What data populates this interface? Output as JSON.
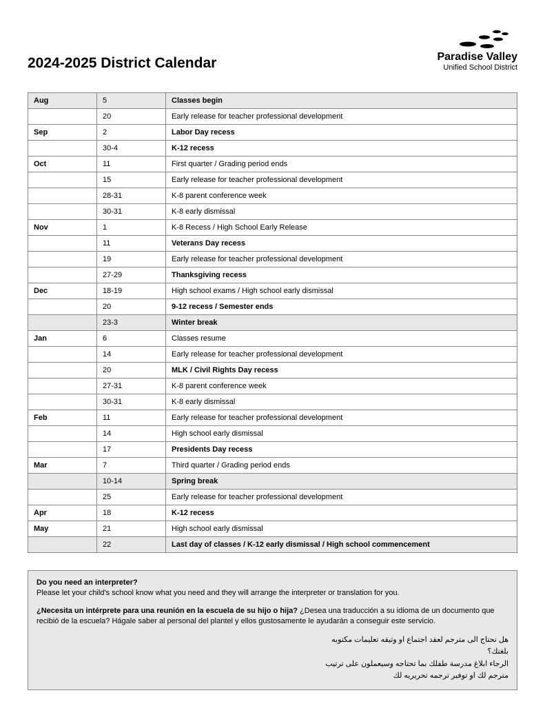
{
  "header": {
    "title": "2024-2025 District Calendar",
    "logo_name": "Paradise Valley",
    "logo_sub": "Unified School District"
  },
  "rows": [
    {
      "month": "Aug",
      "date": "5",
      "event": "Classes begin",
      "bold": true,
      "shaded": true
    },
    {
      "month": "",
      "date": "20",
      "event": "Early release for teacher professional development",
      "bold": false,
      "shaded": false
    },
    {
      "month": "Sep",
      "date": "2",
      "event": "Labor Day recess",
      "bold": true,
      "shaded": false
    },
    {
      "month": "",
      "date": "30-4",
      "event": "K-12 recess",
      "bold": true,
      "shaded": false
    },
    {
      "month": "Oct",
      "date": "11",
      "event": "First quarter / Grading period ends",
      "bold": false,
      "shaded": false
    },
    {
      "month": "",
      "date": "15",
      "event": "Early release for teacher professional development",
      "bold": false,
      "shaded": false
    },
    {
      "month": "",
      "date": "28-31",
      "event": "K-8 parent conference week",
      "bold": false,
      "shaded": false
    },
    {
      "month": "",
      "date": "30-31",
      "event": "K-8 early dismissal",
      "bold": false,
      "shaded": false
    },
    {
      "month": "Nov",
      "date": "1",
      "event": "K-8 Recess / High School Early Release",
      "bold": false,
      "shaded": false
    },
    {
      "month": "",
      "date": "11",
      "event": "Veterans Day recess",
      "bold": true,
      "shaded": false
    },
    {
      "month": "",
      "date": "19",
      "event": "Early release for teacher professional development",
      "bold": false,
      "shaded": false
    },
    {
      "month": "",
      "date": "27-29",
      "event": "Thanksgiving recess",
      "bold": true,
      "shaded": false
    },
    {
      "month": "Dec",
      "date": "18-19",
      "event": "High school exams / High school early dismissal",
      "bold": false,
      "shaded": false
    },
    {
      "month": "",
      "date": "20",
      "event": "9-12 recess / Semester ends",
      "bold": true,
      "shaded": false
    },
    {
      "month": "",
      "date": "23-3",
      "event": "Winter break",
      "bold": true,
      "shaded": true
    },
    {
      "month": "Jan",
      "date": "6",
      "event": "Classes resume",
      "bold": false,
      "shaded": false
    },
    {
      "month": "",
      "date": "14",
      "event": "Early release for teacher professional development",
      "bold": false,
      "shaded": false
    },
    {
      "month": "",
      "date": "20",
      "event": "MLK / Civil Rights Day recess",
      "bold": true,
      "shaded": false
    },
    {
      "month": "",
      "date": "27-31",
      "event": "K-8 parent conference week",
      "bold": false,
      "shaded": false
    },
    {
      "month": "",
      "date": "30-31",
      "event": "K-8 early dismissal",
      "bold": false,
      "shaded": false
    },
    {
      "month": "Feb",
      "date": "11",
      "event": "Early release for teacher professional development",
      "bold": false,
      "shaded": false
    },
    {
      "month": "",
      "date": "14",
      "event": "High school early dismissal",
      "bold": false,
      "shaded": false
    },
    {
      "month": "",
      "date": "17",
      "event": "Presidents Day recess",
      "bold": true,
      "shaded": false
    },
    {
      "month": "Mar",
      "date": "7",
      "event": "Third quarter / Grading period ends",
      "bold": false,
      "shaded": false
    },
    {
      "month": "",
      "date": "10-14",
      "event": "Spring break",
      "bold": true,
      "shaded": true
    },
    {
      "month": "",
      "date": "25",
      "event": "Early release for teacher professional development",
      "bold": false,
      "shaded": false
    },
    {
      "month": "Apr",
      "date": "18",
      "event": "K-12 recess",
      "bold": true,
      "shaded": false
    },
    {
      "month": "May",
      "date": "21",
      "event": "High school early dismissal",
      "bold": false,
      "shaded": false
    },
    {
      "month": "",
      "date": "22",
      "event": "Last day of classes / K-12 early dismissal / High school commencement",
      "bold": true,
      "shaded": true
    }
  ],
  "footer": {
    "en_q": "Do you need an interpreter?",
    "en_body": "Please let your child's school know what you need and they will arrange the interpreter or translation for you.",
    "es_q": "¿Necesita un intérprete para una reunión en la escuela de su hijo o hija?",
    "es_body": " ¿Desea una traducción a su idioma de un documento que recibió de la escuela? Hágale saber al personal del plantel y ellos gustosamente le ayudarán a conseguir este servicio.",
    "ar_1": "هل تحتاج الى مترجم لعقد اجتماع او وثيقه تعليمات مكتوبه",
    "ar_2": "بلغتك؟",
    "ar_3": "الرجاء ابلاغ مدرسة طفلك بما تحتاجه وسيعملون على ترتيب",
    "ar_4": "مترجم لك او توفير ترجمه تحريريه لك"
  }
}
